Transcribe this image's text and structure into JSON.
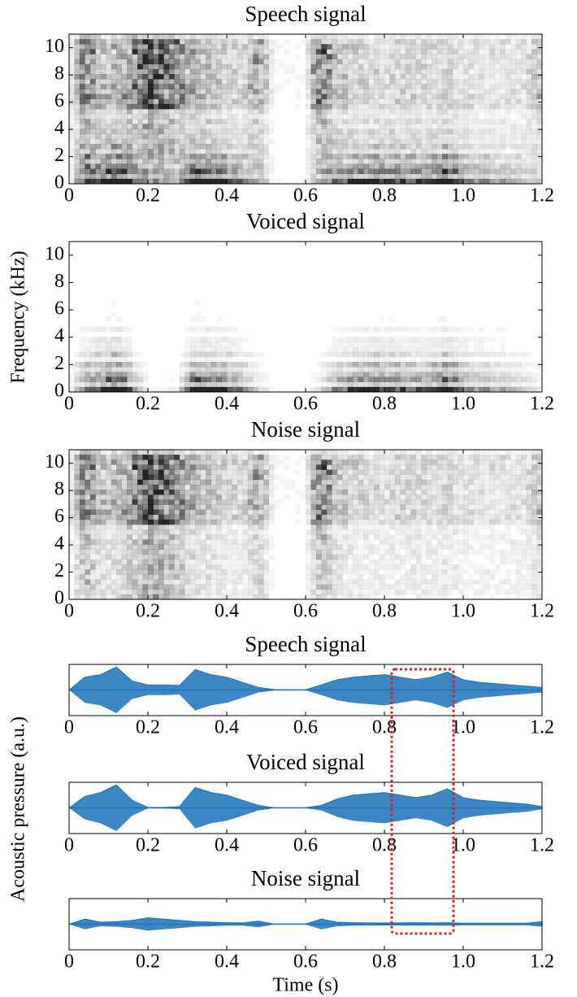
{
  "labels": {
    "frequency": "Frequency (kHz)",
    "pressure": "Acoustic pressure (a.u.)",
    "time": "Time (s)"
  },
  "chart_data": [
    {
      "type": "spectrogram",
      "title": "Speech signal",
      "xlim": [
        0,
        1.2
      ],
      "xticks": [
        0,
        0.2,
        0.4,
        0.6,
        0.8,
        {
          "value": 1,
          "label": "1.0"
        },
        1.2
      ],
      "ylim": [
        0,
        11
      ],
      "yticks": [
        0,
        2,
        4,
        6,
        8,
        10
      ]
    },
    {
      "type": "spectrogram",
      "title": "Voiced signal",
      "xlim": [
        0,
        1.2
      ],
      "xticks": [
        0,
        0.2,
        0.4,
        0.6,
        0.8,
        {
          "value": 1,
          "label": "1.0"
        },
        1.2
      ],
      "ylim": [
        0,
        11
      ],
      "yticks": [
        0,
        2,
        4,
        6,
        8,
        10
      ]
    },
    {
      "type": "spectrogram",
      "title": "Noise signal",
      "xlim": [
        0,
        1.2
      ],
      "xticks": [
        0,
        0.2,
        0.4,
        0.6,
        0.8,
        {
          "value": 1,
          "label": "1.0"
        },
        1.2
      ],
      "ylim": [
        0,
        11
      ],
      "yticks": [
        0,
        2,
        4,
        6,
        8,
        10
      ]
    },
    {
      "type": "waveform",
      "title": "Speech signal",
      "color": "#1a72b8",
      "xlim": [
        0,
        1.2
      ],
      "xticks": [
        0,
        0.2,
        0.4,
        0.6,
        0.8,
        {
          "value": 1,
          "label": "1.0"
        },
        1.2
      ],
      "ylim": [
        -1,
        1
      ],
      "x": [
        0,
        0.04,
        0.08,
        0.12,
        0.16,
        0.2,
        0.24,
        0.28,
        0.32,
        0.36,
        0.4,
        0.44,
        0.48,
        0.52,
        0.56,
        0.6,
        0.64,
        0.68,
        0.72,
        0.76,
        0.8,
        0.84,
        0.88,
        0.92,
        0.96,
        1.0,
        1.04,
        1.08,
        1.12,
        1.16,
        1.2
      ],
      "values": [
        0,
        0.5,
        0.6,
        0.9,
        0.35,
        0.2,
        0.2,
        0.18,
        0.8,
        0.6,
        0.5,
        0.3,
        0.1,
        0.02,
        0.01,
        0.01,
        0.2,
        0.4,
        0.5,
        0.55,
        0.6,
        0.5,
        0.4,
        0.5,
        0.7,
        0.4,
        0.3,
        0.25,
        0.2,
        0.15,
        0.1
      ]
    },
    {
      "type": "waveform",
      "title": "Voiced signal",
      "color": "#1a72b8",
      "xlim": [
        0,
        1.2
      ],
      "xticks": [
        0,
        0.2,
        0.4,
        0.6,
        0.8,
        {
          "value": 1,
          "label": "1.0"
        },
        1.2
      ],
      "ylim": [
        -1,
        1
      ],
      "x": [
        0,
        0.04,
        0.08,
        0.12,
        0.16,
        0.2,
        0.24,
        0.28,
        0.32,
        0.36,
        0.4,
        0.44,
        0.48,
        0.52,
        0.56,
        0.6,
        0.64,
        0.68,
        0.72,
        0.76,
        0.8,
        0.84,
        0.88,
        0.92,
        0.96,
        1.0,
        1.04,
        1.08,
        1.12,
        1.16,
        1.2
      ],
      "values": [
        0,
        0.45,
        0.6,
        0.9,
        0.3,
        0.02,
        0.02,
        0.05,
        0.8,
        0.6,
        0.5,
        0.3,
        0.1,
        0.01,
        0.01,
        0.01,
        0.1,
        0.35,
        0.5,
        0.55,
        0.6,
        0.5,
        0.4,
        0.5,
        0.75,
        0.4,
        0.3,
        0.25,
        0.2,
        0.15,
        0.05
      ]
    },
    {
      "type": "waveform",
      "title": "Noise signal",
      "color": "#1a72b8",
      "xlim": [
        0,
        1.2
      ],
      "xticks": [
        0,
        0.2,
        0.4,
        0.6,
        0.8,
        {
          "value": 1,
          "label": "1.0"
        },
        1.2
      ],
      "ylim": [
        -1,
        1
      ],
      "x": [
        0,
        0.04,
        0.08,
        0.12,
        0.16,
        0.2,
        0.24,
        0.28,
        0.32,
        0.36,
        0.4,
        0.44,
        0.48,
        0.52,
        0.56,
        0.6,
        0.64,
        0.68,
        0.72,
        0.76,
        0.8,
        0.84,
        0.88,
        0.92,
        0.96,
        1.0,
        1.04,
        1.08,
        1.12,
        1.16,
        1.2
      ],
      "values": [
        0,
        0.2,
        0.08,
        0.1,
        0.15,
        0.25,
        0.2,
        0.15,
        0.1,
        0.08,
        0.06,
        0.05,
        0.12,
        0.01,
        0.01,
        0.01,
        0.2,
        0.08,
        0.06,
        0.05,
        0.05,
        0.05,
        0.06,
        0.05,
        0.06,
        0.04,
        0.04,
        0.04,
        0.04,
        0.04,
        0.1
      ]
    }
  ]
}
